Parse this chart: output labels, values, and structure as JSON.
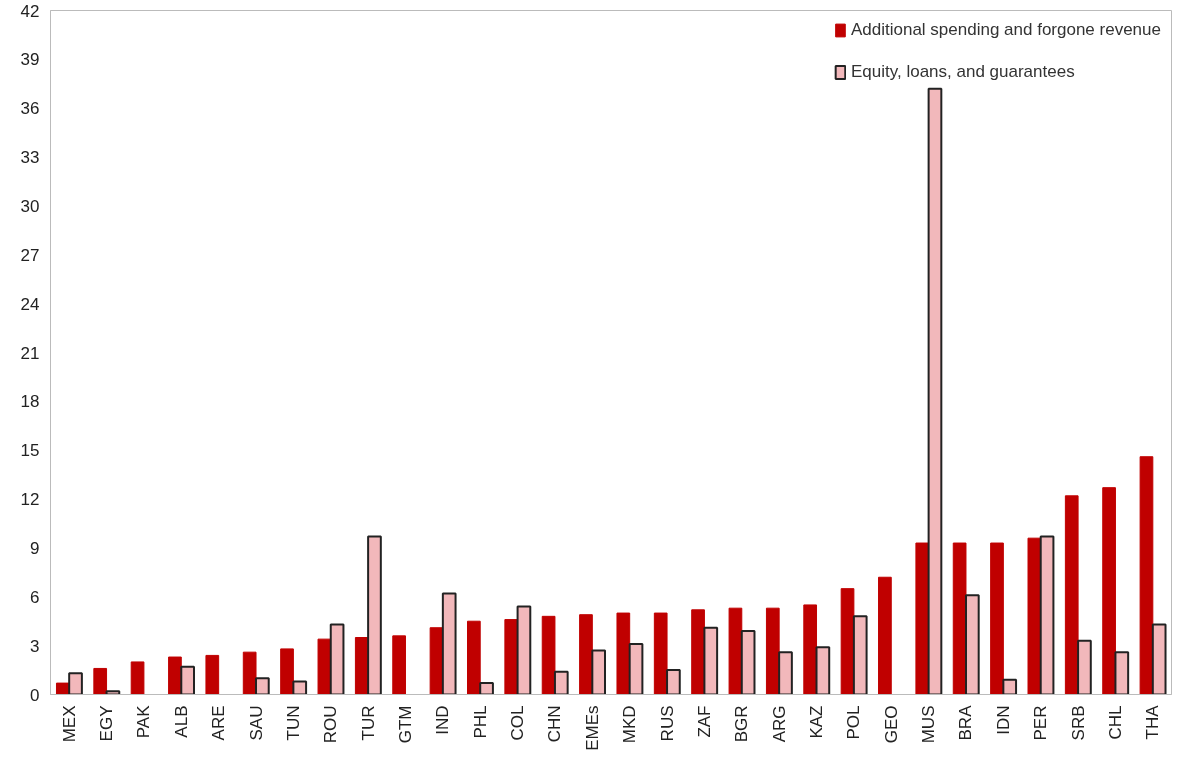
{
  "chart_data": {
    "type": "bar",
    "categories": [
      "MEX",
      "EGY",
      "PAK",
      "ALB",
      "ARE",
      "SAU",
      "TUN",
      "ROU",
      "TUR",
      "GTM",
      "IND",
      "PHL",
      "COL",
      "CHN",
      "EMEs",
      "MKD",
      "RUS",
      "ZAF",
      "BGR",
      "ARG",
      "KAZ",
      "POL",
      "GEO",
      "MUS",
      "BRA",
      "IDN",
      "PER",
      "SRB",
      "CHL",
      "THA"
    ],
    "series": [
      {
        "name": "Additional spending and forgone revenue",
        "color": "#c00000",
        "values": [
          0.7,
          1.6,
          2.0,
          2.3,
          2.4,
          2.6,
          2.8,
          3.4,
          3.5,
          3.6,
          4.1,
          4.5,
          4.6,
          4.8,
          4.9,
          5.0,
          5.0,
          5.2,
          5.3,
          5.3,
          5.5,
          6.5,
          7.2,
          9.3,
          9.3,
          9.3,
          9.6,
          12.2,
          12.7,
          14.6
        ]
      },
      {
        "name": "Equity, loans, and guarantees",
        "color": "#f2b8bb",
        "values": [
          1.3,
          0.2,
          null,
          1.7,
          null,
          1.0,
          0.8,
          4.3,
          9.7,
          null,
          6.2,
          0.7,
          5.4,
          1.4,
          2.7,
          3.1,
          1.5,
          4.1,
          3.9,
          2.6,
          2.9,
          4.8,
          null,
          37.2,
          6.1,
          0.9,
          9.7,
          3.3,
          2.6,
          4.3
        ]
      }
    ],
    "ylim": [
      0,
      42
    ],
    "yticks": [
      0,
      3,
      6,
      9,
      12,
      15,
      18,
      21,
      24,
      27,
      30,
      33,
      36,
      39,
      42
    ],
    "grid": false,
    "legend": "top right"
  }
}
